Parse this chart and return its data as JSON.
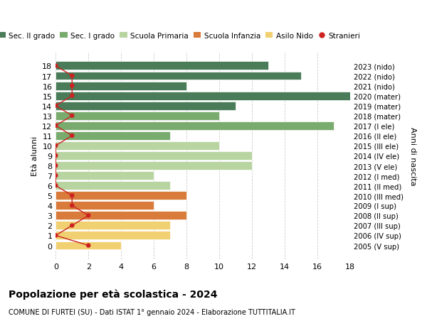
{
  "ages": [
    18,
    17,
    16,
    15,
    14,
    13,
    12,
    11,
    10,
    9,
    8,
    7,
    6,
    5,
    4,
    3,
    2,
    1,
    0
  ],
  "right_labels": [
    "2005 (V sup)",
    "2006 (IV sup)",
    "2007 (III sup)",
    "2008 (II sup)",
    "2009 (I sup)",
    "2010 (III med)",
    "2011 (II med)",
    "2012 (I med)",
    "2013 (V ele)",
    "2014 (IV ele)",
    "2015 (III ele)",
    "2016 (II ele)",
    "2017 (I ele)",
    "2018 (mater)",
    "2019 (mater)",
    "2020 (mater)",
    "2021 (nido)",
    "2022 (nido)",
    "2023 (nido)"
  ],
  "bar_values": [
    13,
    15,
    8,
    18,
    11,
    10,
    17,
    7,
    10,
    12,
    12,
    6,
    7,
    8,
    6,
    8,
    7,
    7,
    4
  ],
  "bar_colors": [
    "#4a7c59",
    "#4a7c59",
    "#4a7c59",
    "#4a7c59",
    "#4a7c59",
    "#7aab6e",
    "#7aab6e",
    "#7aab6e",
    "#b8d4a0",
    "#b8d4a0",
    "#b8d4a0",
    "#b8d4a0",
    "#b8d4a0",
    "#d97b3a",
    "#d97b3a",
    "#d97b3a",
    "#f0d070",
    "#f0d070",
    "#f0d070"
  ],
  "stranieri_x": [
    0,
    1,
    1,
    1,
    0,
    1,
    0,
    1,
    0,
    0,
    0,
    0,
    0,
    1,
    1,
    2,
    1,
    0,
    2
  ],
  "legend_labels": [
    "Sec. II grado",
    "Sec. I grado",
    "Scuola Primaria",
    "Scuola Infanzia",
    "Asilo Nido",
    "Stranieri"
  ],
  "legend_colors": [
    "#4a7c59",
    "#7aab6e",
    "#b8d4a0",
    "#d97b3a",
    "#f0d070",
    "#cc2222"
  ],
  "title": "Popolazione per età scolastica - 2024",
  "subtitle": "COMUNE DI FURTEI (SU) - Dati ISTAT 1° gennaio 2024 - Elaborazione TUTTITALIA.IT",
  "ylabel_left": "Età alunni",
  "ylabel_right": "Anni di nascita",
  "xlim": [
    0,
    18
  ],
  "xticks": [
    0,
    2,
    4,
    6,
    8,
    10,
    12,
    14,
    16,
    18
  ],
  "background_color": "#ffffff",
  "grid_color": "#cccccc"
}
